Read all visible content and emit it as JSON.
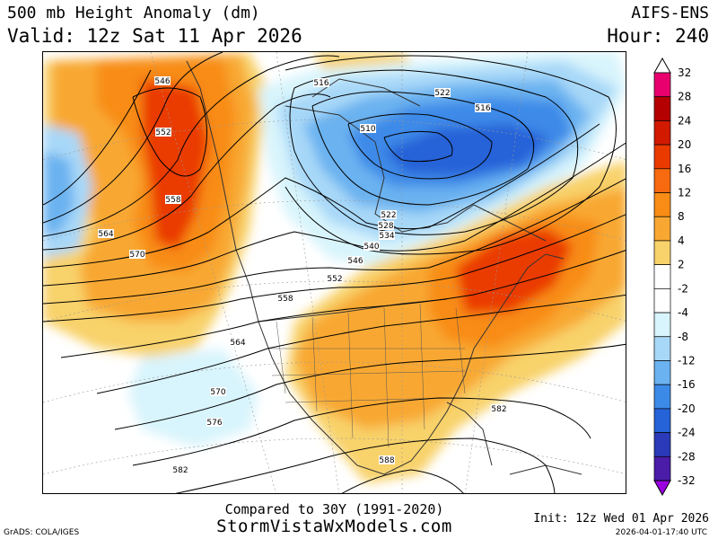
{
  "header": {
    "title": "500 mb Height Anomaly (dm)",
    "valid": "Valid: 12z Sat 11 Apr 2026",
    "model": "AIFS-ENS",
    "hour": "Hour: 240"
  },
  "footer": {
    "compared": "Compared to 30Y (1991-2020)",
    "site": "StormVistaWxModels.com",
    "init": "Init: 12z Wed 01 Apr 2026",
    "grads": "GrADS: COLA/IGES",
    "timestamp": "2026-04-01-17:40 UTC"
  },
  "contour_labels": [
    {
      "text": "546",
      "name": "label-546-west"
    },
    {
      "text": "552",
      "name": "label-552-west"
    },
    {
      "text": "558",
      "name": "label-558-west"
    },
    {
      "text": "564",
      "name": "label-564-west"
    },
    {
      "text": "570",
      "name": "label-570-west"
    },
    {
      "text": "516",
      "name": "label-516-north"
    },
    {
      "text": "510",
      "name": "label-510"
    },
    {
      "text": "522",
      "name": "label-522-north"
    },
    {
      "text": "516",
      "name": "label-516-east"
    },
    {
      "text": "522",
      "name": "label-522-center"
    },
    {
      "text": "528",
      "name": "label-528"
    },
    {
      "text": "534",
      "name": "label-534"
    },
    {
      "text": "540",
      "name": "label-540"
    },
    {
      "text": "546",
      "name": "label-546-center"
    },
    {
      "text": "552",
      "name": "label-552-center"
    },
    {
      "text": "558",
      "name": "label-558-center"
    },
    {
      "text": "564",
      "name": "label-564-center"
    },
    {
      "text": "570",
      "name": "label-570-south"
    },
    {
      "text": "576",
      "name": "label-576"
    },
    {
      "text": "582",
      "name": "label-582-southwest"
    },
    {
      "text": "582",
      "name": "label-582-east"
    },
    {
      "text": "588",
      "name": "label-588"
    }
  ],
  "colorbar": {
    "ticks": [
      "32",
      "28",
      "24",
      "20",
      "16",
      "12",
      "8",
      "4",
      "2",
      "-2",
      "-4",
      "-8",
      "-12",
      "-16",
      "-20",
      "-24",
      "-28",
      "-32"
    ],
    "colors": [
      "#e8006e",
      "#b40000",
      "#d21a00",
      "#ea3a00",
      "#f86a10",
      "#f88c14",
      "#f8a832",
      "#f8d26a",
      "#ffffff",
      "#ffffff",
      "#d8f4fc",
      "#a8d8f8",
      "#6ab2f0",
      "#3c8ae8",
      "#2662d8",
      "#2a3ab8",
      "#4a1ca8",
      "#9a00e0"
    ]
  }
}
